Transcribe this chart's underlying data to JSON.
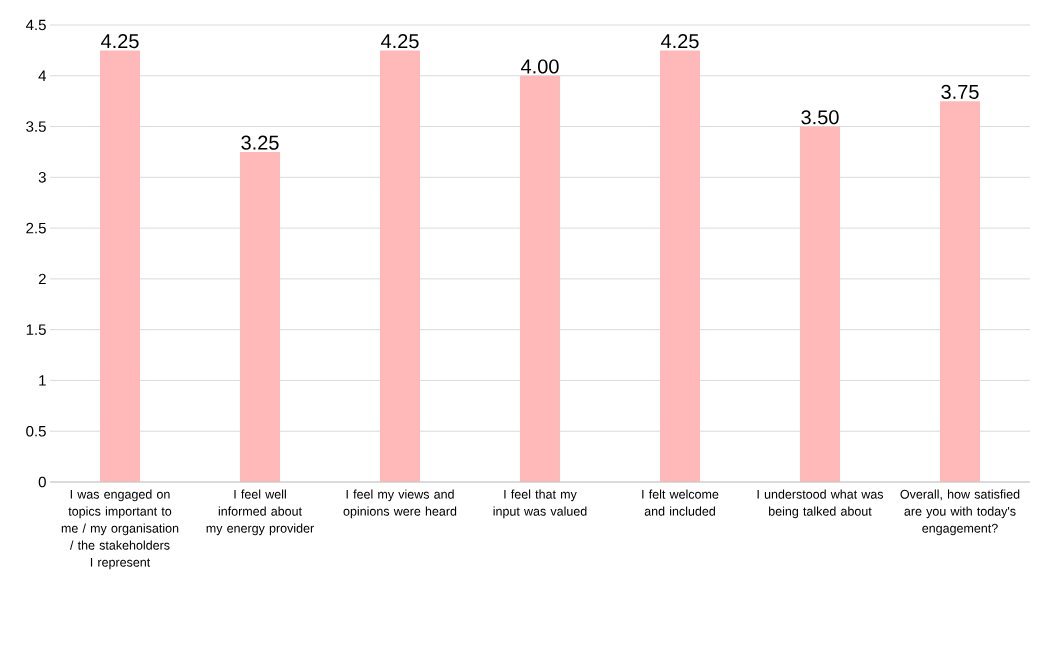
{
  "chart_data": {
    "type": "bar",
    "categories": [
      "I was engaged on topics important to me / my organisation / the stakeholders I represent",
      "I feel well informed about my energy provider",
      "I feel my views and opinions were heard",
      "I feel that my input was valued",
      "I felt welcome and included",
      "I understood what was being talked about",
      "Overall, how satisfied are you with today's engagement?"
    ],
    "values": [
      4.25,
      3.25,
      4.25,
      4.0,
      4.25,
      3.5,
      3.75
    ],
    "value_labels": [
      "4.25",
      "3.25",
      "4.25",
      "4.00",
      "4.25",
      "3.50",
      "3.75"
    ],
    "color": "#ffb9b9",
    "ylim": [
      0,
      4.5
    ],
    "yticks": [
      0,
      0.5,
      1,
      1.5,
      2,
      2.5,
      3,
      3.5,
      4,
      4.5
    ],
    "grid": "y"
  }
}
